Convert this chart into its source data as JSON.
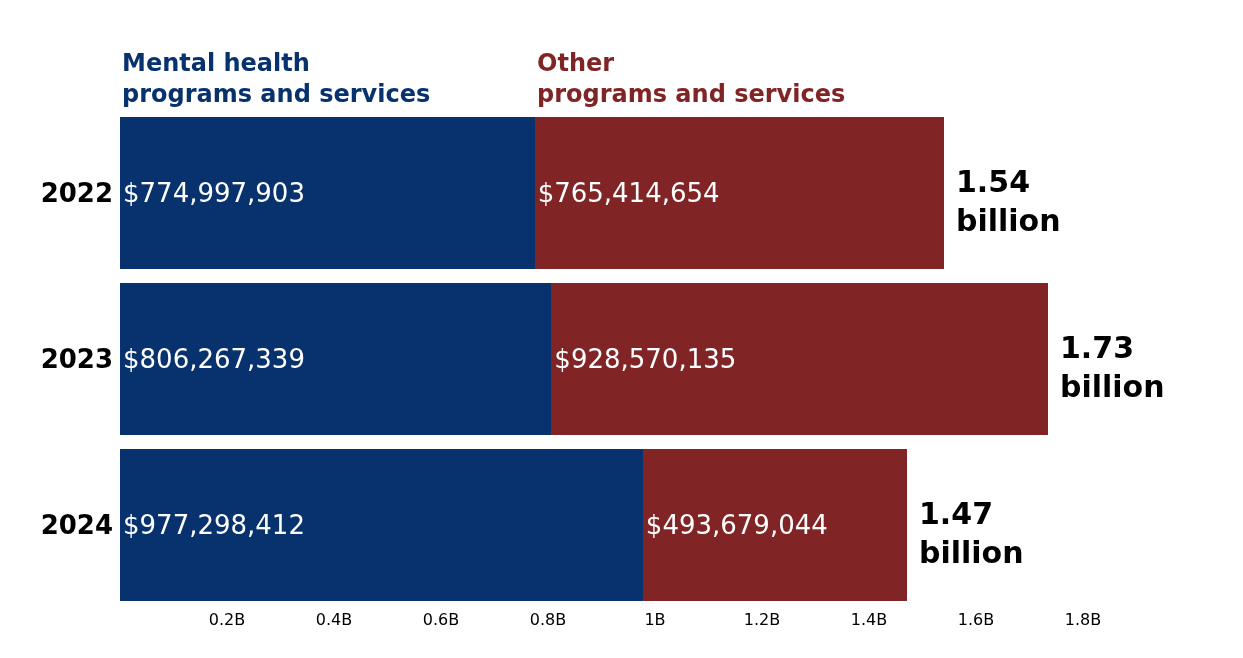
{
  "chart_data": {
    "type": "bar",
    "orientation": "horizontal",
    "stacked": true,
    "categories": [
      "2022",
      "2023",
      "2024"
    ],
    "series": [
      {
        "name": "Mental health\nprograms and services",
        "color": "#08326e",
        "values": [
          774997903,
          806267339,
          977298412
        ],
        "value_labels": [
          "$774,997,903",
          "$806,267,339",
          "$977,298,412"
        ]
      },
      {
        "name": "Other\nprograms and services",
        "color": "#812426",
        "values": [
          765414654,
          928570135,
          493679044
        ],
        "value_labels": [
          "$765,414,654",
          "$928,570,135",
          "$493,679,044"
        ]
      }
    ],
    "totals": [
      "1.54\nbillion",
      "1.73\nbillion",
      "1.47\nbillion"
    ],
    "xlim": [
      0,
      1800000000
    ],
    "xticks": [
      {
        "value": 200000000,
        "label": "0.2B"
      },
      {
        "value": 400000000,
        "label": "0.4B"
      },
      {
        "value": 600000000,
        "label": "0.6B"
      },
      {
        "value": 800000000,
        "label": "0.8B"
      },
      {
        "value": 1000000000,
        "label": "1B"
      },
      {
        "value": 1200000000,
        "label": "1.2B"
      },
      {
        "value": 1400000000,
        "label": "1.4B"
      },
      {
        "value": 1600000000,
        "label": "1.6B"
      },
      {
        "value": 1800000000,
        "label": "1.8B"
      }
    ],
    "legend": false
  }
}
